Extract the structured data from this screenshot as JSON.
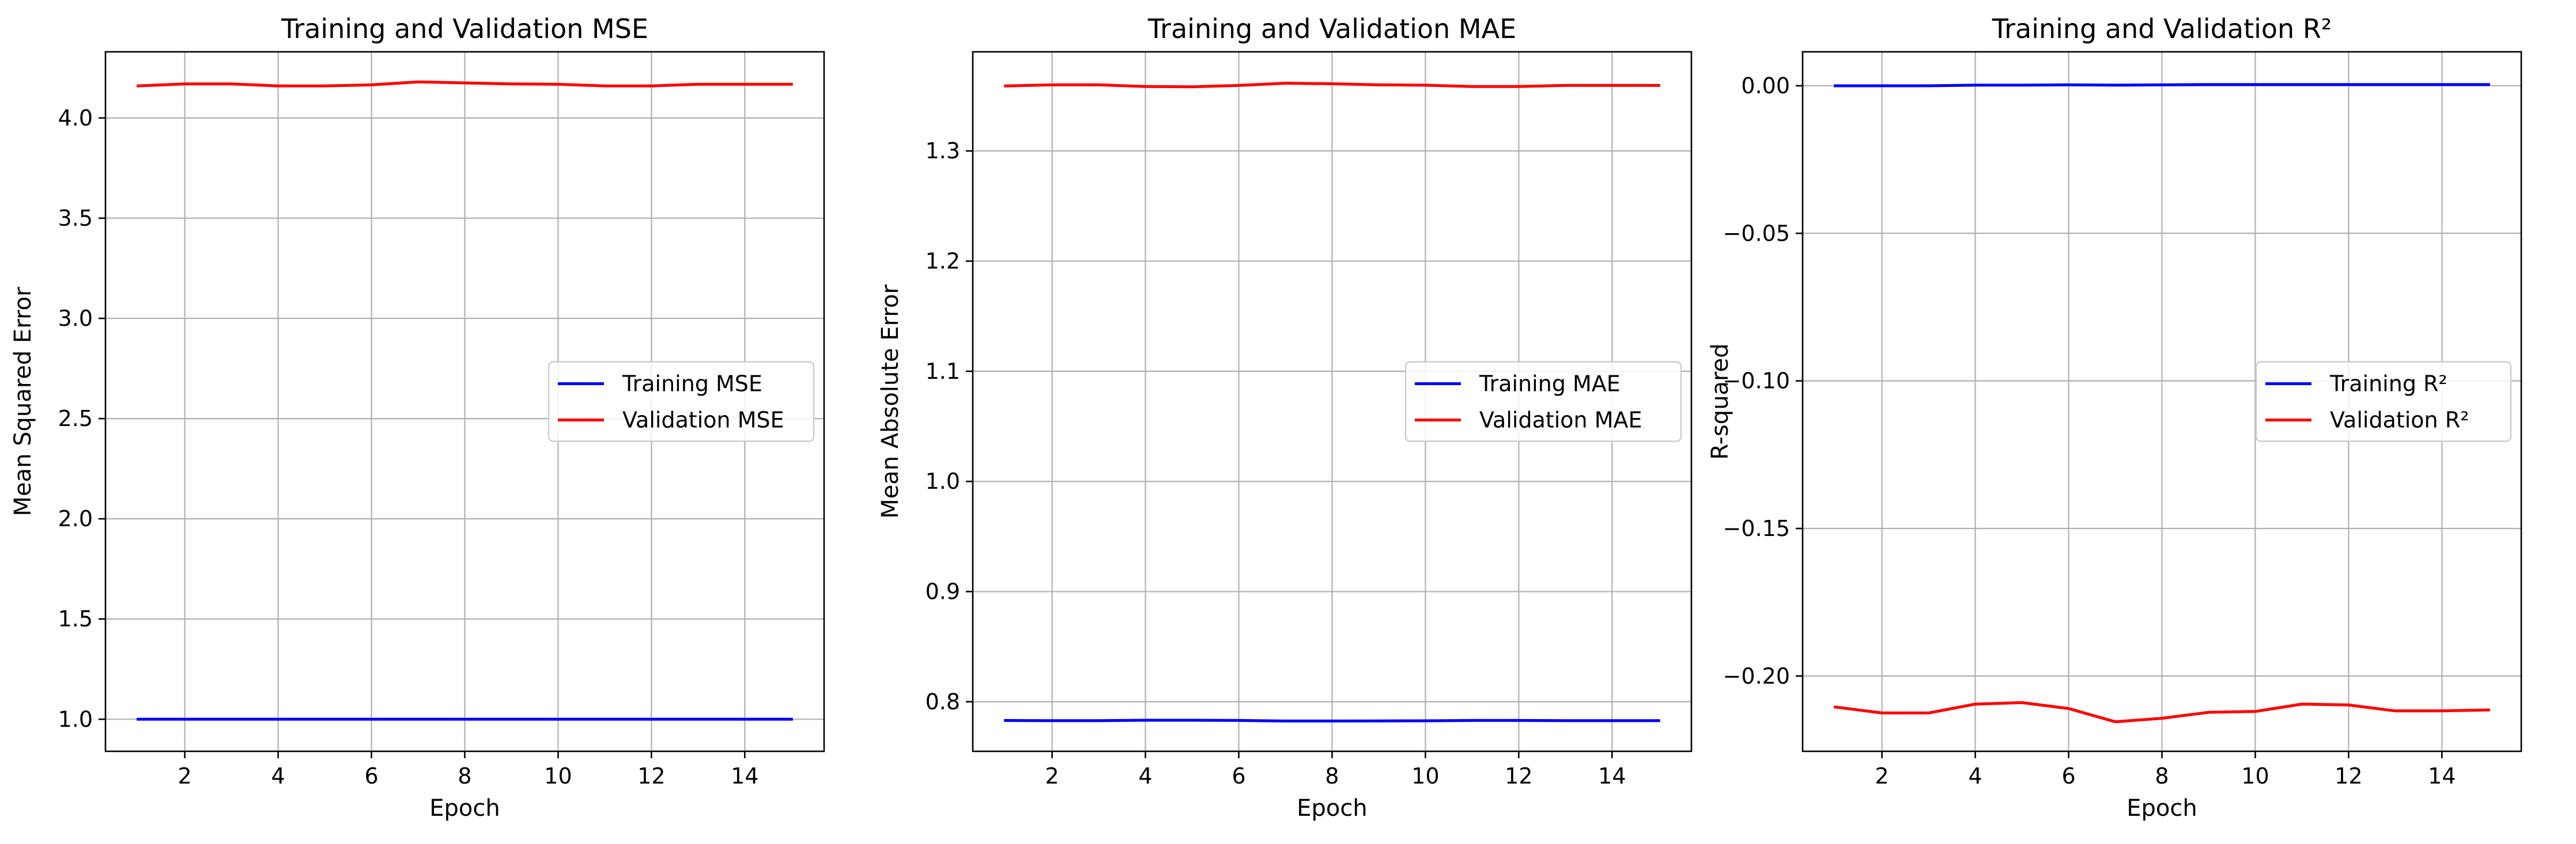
{
  "chart_data": [
    {
      "type": "line",
      "title": "Training and Validation MSE",
      "xlabel": "Epoch",
      "ylabel": "Mean Squared Error",
      "xlim": [
        0.3,
        15.7
      ],
      "ylim": [
        0.84,
        4.33
      ],
      "xticks": [
        2,
        4,
        6,
        8,
        10,
        12,
        14
      ],
      "yticks": [
        1.0,
        1.5,
        2.0,
        2.5,
        3.0,
        3.5,
        4.0
      ],
      "ytick_labels": [
        "1.0",
        "1.5",
        "2.0",
        "2.5",
        "3.0",
        "3.5",
        "4.0"
      ],
      "grid": true,
      "legend_position": "center-right",
      "x": [
        1,
        2,
        3,
        4,
        5,
        6,
        7,
        8,
        9,
        10,
        11,
        12,
        13,
        14,
        15
      ],
      "series": [
        {
          "name": "Training MSE",
          "color": "#0000ff",
          "values": [
            1.0,
            1.0,
            1.0,
            1.0,
            1.0,
            1.0,
            1.0,
            1.0,
            1.0,
            1.0,
            1.0,
            1.0,
            1.0,
            1.0,
            1.0
          ]
        },
        {
          "name": "Validation MSE",
          "color": "#ff0000",
          "values": [
            4.16,
            4.17,
            4.17,
            4.16,
            4.16,
            4.165,
            4.18,
            4.175,
            4.17,
            4.168,
            4.16,
            4.16,
            4.168,
            4.168,
            4.168
          ]
        }
      ]
    },
    {
      "type": "line",
      "title": "Training and Validation MAE",
      "xlabel": "Epoch",
      "ylabel": "Mean Absolute Error",
      "xlim": [
        0.3,
        15.7
      ],
      "ylim": [
        0.755,
        1.39
      ],
      "xticks": [
        2,
        4,
        6,
        8,
        10,
        12,
        14
      ],
      "yticks": [
        0.8,
        0.9,
        1.0,
        1.1,
        1.2,
        1.3
      ],
      "ytick_labels": [
        "0.8",
        "0.9",
        "1.0",
        "1.1",
        "1.2",
        "1.3"
      ],
      "grid": true,
      "legend_position": "center-right",
      "x": [
        1,
        2,
        3,
        4,
        5,
        6,
        7,
        8,
        9,
        10,
        11,
        12,
        13,
        14,
        15
      ],
      "series": [
        {
          "name": "Training MAE",
          "color": "#0000ff",
          "values": [
            0.783,
            0.7828,
            0.7828,
            0.7832,
            0.7832,
            0.783,
            0.7825,
            0.7825,
            0.7826,
            0.7827,
            0.783,
            0.783,
            0.7828,
            0.7828,
            0.7828
          ]
        },
        {
          "name": "Validation MAE",
          "color": "#ff0000",
          "values": [
            1.359,
            1.36,
            1.36,
            1.3585,
            1.3583,
            1.3595,
            1.3615,
            1.361,
            1.36,
            1.3597,
            1.3585,
            1.3585,
            1.3595,
            1.3595,
            1.3595
          ]
        }
      ]
    },
    {
      "type": "line",
      "title": "Training and Validation R²",
      "xlabel": "Epoch",
      "ylabel": "R-squared",
      "xlim": [
        0.3,
        15.7
      ],
      "ylim": [
        -0.2255,
        0.0115
      ],
      "xticks": [
        2,
        4,
        6,
        8,
        10,
        12,
        14
      ],
      "yticks": [
        0.0,
        -0.05,
        -0.1,
        -0.15,
        -0.2
      ],
      "ytick_labels": [
        "0.00",
        "−0.05",
        "−0.10",
        "−0.15",
        "−0.20"
      ],
      "grid": true,
      "legend_position": "center-right",
      "x": [
        1,
        2,
        3,
        4,
        5,
        6,
        7,
        8,
        9,
        10,
        11,
        12,
        13,
        14,
        15
      ],
      "series": [
        {
          "name": "Training R²",
          "color": "#0000ff",
          "values": [
            0.0,
            0.0,
            0.0,
            0.0002,
            0.0002,
            0.0003,
            0.0002,
            0.0003,
            0.0004,
            0.0004,
            0.0004,
            0.0004,
            0.0004,
            0.0004,
            0.0004
          ]
        },
        {
          "name": "Validation R²",
          "color": "#ff0000",
          "values": [
            -0.2105,
            -0.2125,
            -0.2125,
            -0.2095,
            -0.209,
            -0.211,
            -0.2155,
            -0.2143,
            -0.2123,
            -0.212,
            -0.2095,
            -0.2098,
            -0.2118,
            -0.2118,
            -0.2115
          ]
        }
      ]
    }
  ]
}
